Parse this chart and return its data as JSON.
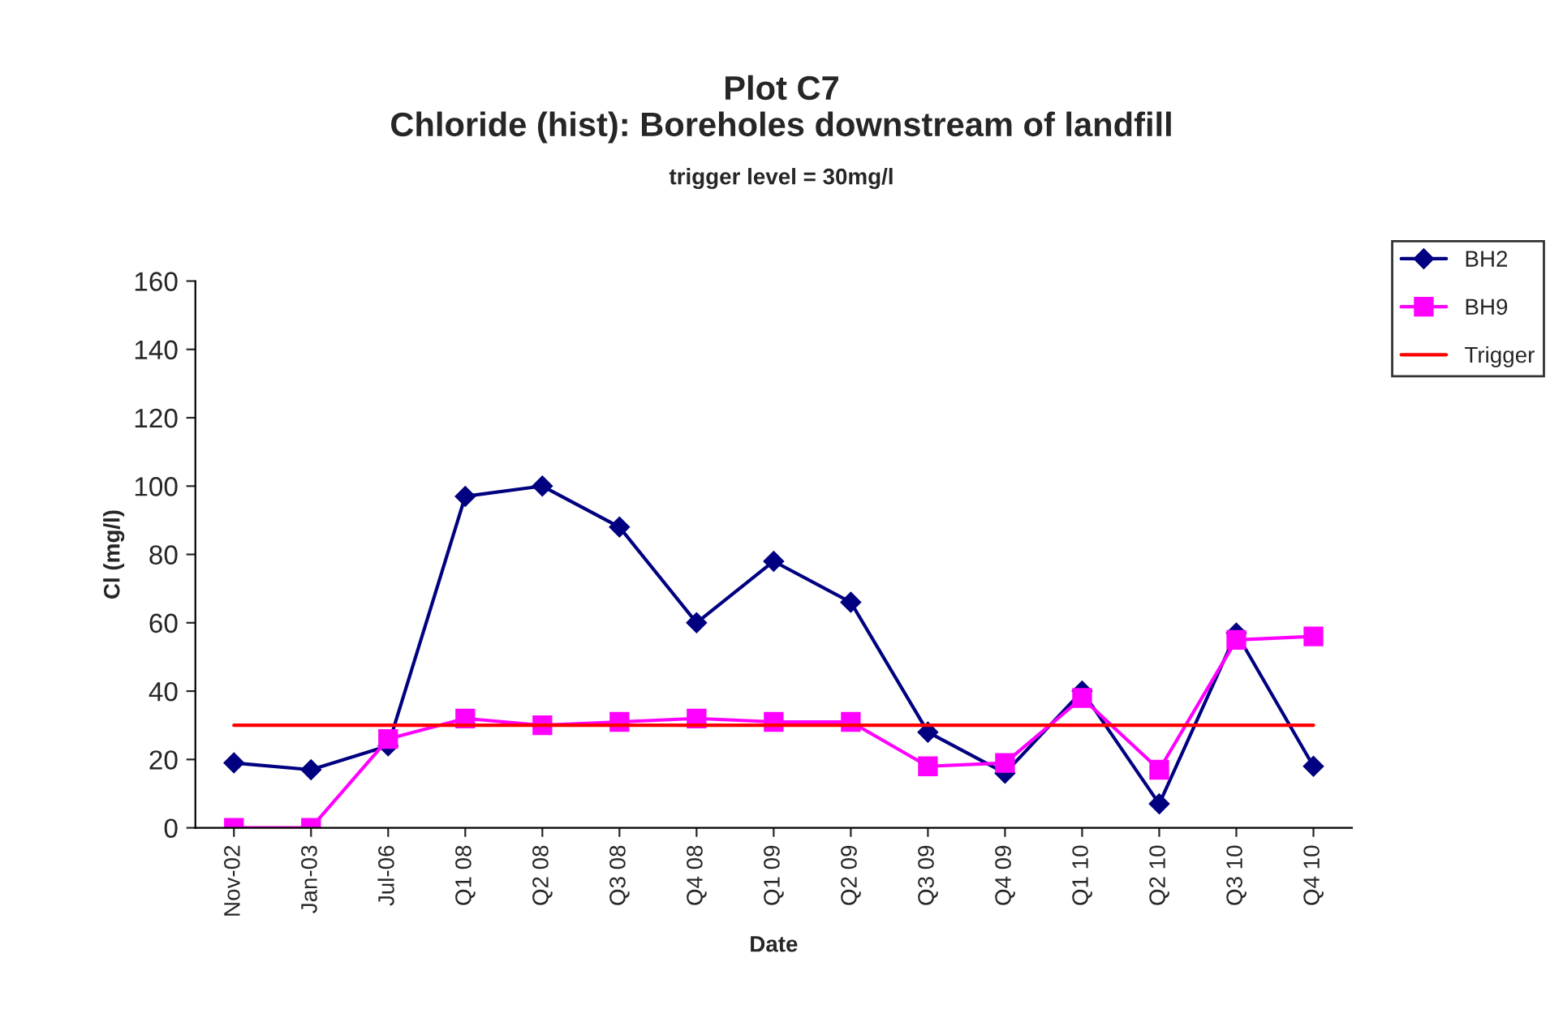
{
  "chart_data": {
    "type": "line",
    "title": "Plot C7\nChloride (hist): Boreholes downstream of landfill",
    "subtitle": "trigger level = 30mg/l",
    "xlabel": "Date",
    "ylabel": "Cl (mg/l)",
    "categories": [
      "Nov-02",
      "Jan-03",
      "Jul-06",
      "Q1 08",
      "Q2 08",
      "Q3 08",
      "Q4 08",
      "Q1 09",
      "Q2 09",
      "Q3 09",
      "Q4 09",
      "Q1 10",
      "Q2 10",
      "Q3 10",
      "Q4 10"
    ],
    "series": [
      {
        "name": "BH2",
        "color": "#000080",
        "marker": "diamond",
        "values": [
          19,
          17,
          24,
          97,
          100,
          88,
          60,
          78,
          66,
          28,
          16,
          40,
          7,
          57,
          18
        ]
      },
      {
        "name": "BH9",
        "color": "#ff00ff",
        "marker": "square",
        "values": [
          0,
          0,
          26,
          32,
          30,
          31,
          32,
          31,
          31,
          18,
          19,
          38,
          17,
          55,
          56
        ]
      },
      {
        "name": "Trigger",
        "color": "#ff0000",
        "marker": "none",
        "values": [
          30,
          30,
          30,
          30,
          30,
          30,
          30,
          30,
          30,
          30,
          30,
          30,
          30,
          30,
          30
        ]
      }
    ],
    "ylim": [
      0,
      160
    ],
    "yticks": [
      0,
      20,
      40,
      60,
      80,
      100,
      120,
      140,
      160
    ],
    "grid": false,
    "legend": "right",
    "line_style": "solid"
  }
}
